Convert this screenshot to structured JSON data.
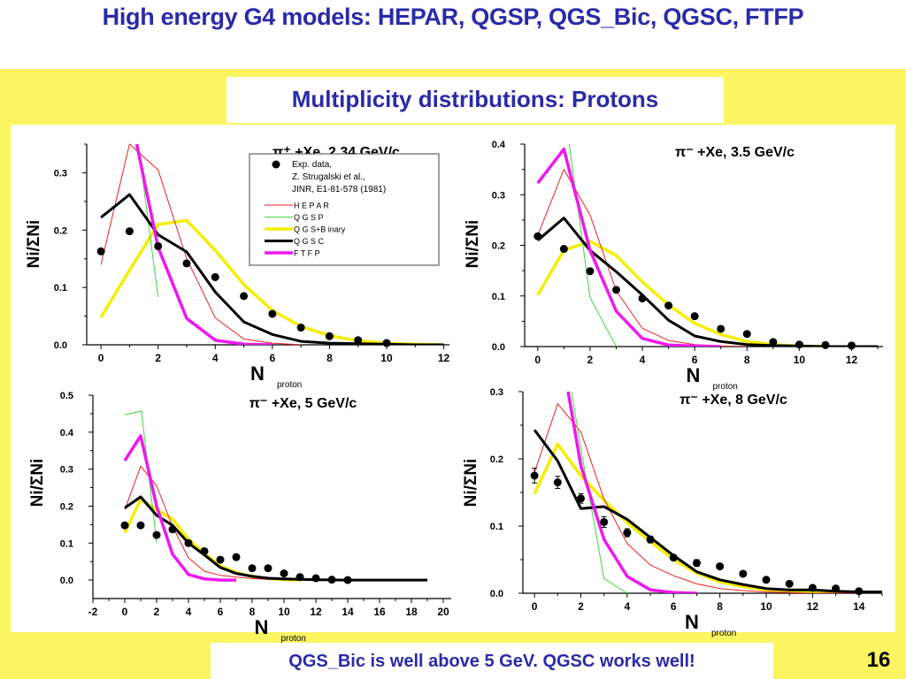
{
  "slide": {
    "title": "High energy G4 models: HEPAR, QGSP, QGS_Bic, QGSC, FTFP",
    "subtitle": "Multiplicity distributions: Protons",
    "footer": "QGS_Bic is well above 5 GeV. QGSC works well!",
    "page_number": "16"
  },
  "colors": {
    "title_text": "#2a2aa8",
    "background": "#fbf562",
    "HEPAR": "#e8231f",
    "QGSP": "#3ed83e",
    "QGS+Binary": "#f4ee00",
    "QGSC": "#000000",
    "FTFP": "#ee18ee",
    "data": "#000000"
  },
  "legend": {
    "data_label_lines": [
      "Exp. data,",
      "Z. Strugalski et al.,",
      "JINR, E1-81-578 (1981)"
    ],
    "entries": [
      "HEPAR",
      "QGSP",
      "QGS+Binary",
      "QGSC",
      "FTFP"
    ],
    "displayed_labels": [
      "H E P A R",
      "Q G S P",
      "Q G S+B inary",
      "Q G S C",
      "F T F P"
    ]
  },
  "chart_data": [
    {
      "type": "line",
      "title": "π⁺ +Xe, 2.34 GeV/c",
      "xlabel": "N",
      "xlabel_sub": "proton",
      "ylabel": "Ni/ΣNi",
      "xlim": [
        -0.5,
        12.2
      ],
      "ylim": [
        0,
        0.35
      ],
      "xticks": [
        0,
        2,
        4,
        6,
        8,
        10,
        12
      ],
      "yticks": [
        0.0,
        0.1,
        0.2,
        0.3
      ],
      "ytick_labels": [
        "0.0",
        "0.1",
        "0.2",
        "0.3"
      ],
      "legend_placement": "top-right",
      "has_legend": true,
      "data_points": {
        "x": [
          0,
          1,
          2,
          3,
          4,
          5,
          6,
          7,
          8,
          9,
          10
        ],
        "y": [
          0.163,
          0.198,
          0.172,
          0.142,
          0.118,
          0.085,
          0.054,
          0.03,
          0.015,
          0.008,
          0.003
        ],
        "errors": false
      },
      "series": [
        {
          "name": "HEPAR",
          "x": [
            0,
            1,
            2,
            3,
            4,
            5,
            6,
            7
          ],
          "y": [
            0.14,
            0.35,
            0.305,
            0.15,
            0.047,
            0.01,
            0.003,
            0.0
          ]
        },
        {
          "name": "QGSP",
          "x": [
            1.3,
            2
          ],
          "y": [
            0.35,
            0.083
          ]
        },
        {
          "name": "QGS+Binary",
          "x": [
            0,
            1,
            2,
            3,
            4,
            5,
            6,
            7,
            8,
            9,
            10,
            11,
            12
          ],
          "y": [
            0.048,
            0.13,
            0.21,
            0.217,
            0.165,
            0.105,
            0.06,
            0.032,
            0.016,
            0.007,
            0.003,
            0.001,
            0.0
          ]
        },
        {
          "name": "QGSC",
          "x": [
            0,
            1,
            2,
            3,
            4,
            5,
            6,
            7,
            8,
            9,
            10,
            11,
            12
          ],
          "y": [
            0.222,
            0.262,
            0.192,
            0.162,
            0.092,
            0.04,
            0.018,
            0.006,
            0.003,
            0.002,
            0.001,
            0.0,
            0.0
          ]
        },
        {
          "name": "FTFP",
          "x": [
            1.25,
            2,
            3,
            4,
            5,
            6
          ],
          "y": [
            0.35,
            0.17,
            0.046,
            0.008,
            0.001,
            0.0
          ]
        }
      ]
    },
    {
      "type": "line",
      "title": "π⁻ +Xe, 3.5 GeV/c",
      "xlabel": "N",
      "xlabel_sub": "proton",
      "ylabel": "Ni/ΣNi",
      "xlim": [
        -0.5,
        13.2
      ],
      "ylim": [
        0,
        0.4
      ],
      "xticks": [
        0,
        2,
        4,
        6,
        8,
        10,
        12
      ],
      "yticks": [
        0.0,
        0.1,
        0.2,
        0.3,
        0.4
      ],
      "ytick_labels": [
        "0.0",
        "0.1",
        "0.2",
        "0.3",
        "0.4"
      ],
      "has_legend": false,
      "data_points": {
        "x": [
          0,
          1,
          2,
          3,
          4,
          5,
          6,
          7,
          8,
          9,
          10,
          11,
          12
        ],
        "y": [
          0.218,
          0.193,
          0.149,
          0.112,
          0.095,
          0.081,
          0.06,
          0.035,
          0.025,
          0.009,
          0.004,
          0.003,
          0.002
        ],
        "errors": false
      },
      "series": [
        {
          "name": "HEPAR",
          "x": [
            0,
            1,
            2,
            3,
            4,
            5,
            6,
            7,
            8
          ],
          "y": [
            0.22,
            0.35,
            0.26,
            0.11,
            0.036,
            0.012,
            0.004,
            0.001,
            0.0
          ]
        },
        {
          "name": "QGSP",
          "x": [
            1.2,
            2,
            3
          ],
          "y": [
            0.4,
            0.097,
            0.0
          ]
        },
        {
          "name": "QGS+Binary",
          "x": [
            0,
            1,
            2,
            3,
            4,
            5,
            6,
            7,
            8,
            9,
            10,
            11
          ],
          "y": [
            0.102,
            0.19,
            0.208,
            0.18,
            0.128,
            0.082,
            0.046,
            0.024,
            0.01,
            0.004,
            0.001,
            0.0
          ]
        },
        {
          "name": "QGSC",
          "x": [
            0,
            1,
            2,
            3,
            4,
            5,
            6,
            7,
            8,
            9,
            10,
            11,
            12,
            13
          ],
          "y": [
            0.21,
            0.254,
            0.19,
            0.148,
            0.102,
            0.052,
            0.021,
            0.01,
            0.004,
            0.002,
            0.001,
            0.0,
            0.0,
            0.0
          ]
        },
        {
          "name": "FTFP",
          "x": [
            0,
            1,
            2,
            3,
            4,
            5,
            6,
            7
          ],
          "y": [
            0.323,
            0.39,
            0.19,
            0.07,
            0.016,
            0.003,
            0.001,
            0.0
          ]
        }
      ]
    },
    {
      "type": "line",
      "title": "π⁻ +Xe, 5 GeV/c",
      "xlabel": "N",
      "xlabel_sub": "proton",
      "ylabel": "Ni/ΣNi",
      "xlim": [
        -2,
        20.5
      ],
      "ylim": [
        -0.05,
        0.5
      ],
      "xticks": [
        -2,
        0,
        2,
        4,
        6,
        8,
        10,
        12,
        14,
        16,
        18,
        20
      ],
      "yticks": [
        0.0,
        0.1,
        0.2,
        0.3,
        0.4,
        0.5
      ],
      "ytick_labels": [
        "0.0",
        "0.1",
        "0.2",
        "0.3",
        "0.4",
        "0.5"
      ],
      "has_legend": false,
      "data_points": {
        "x": [
          0,
          1,
          2,
          3,
          4,
          5,
          6,
          7,
          8,
          9,
          10,
          11,
          12,
          13,
          14
        ],
        "y": [
          0.148,
          0.148,
          0.122,
          0.137,
          0.1,
          0.078,
          0.055,
          0.062,
          0.032,
          0.032,
          0.018,
          0.008,
          0.005,
          0.001,
          0.0
        ],
        "errors": false
      },
      "series": [
        {
          "name": "HEPAR",
          "x": [
            0,
            1,
            2,
            3,
            4,
            5,
            6,
            7,
            8,
            9,
            10,
            11,
            12
          ],
          "y": [
            0.19,
            0.308,
            0.255,
            0.145,
            0.06,
            0.024,
            0.013,
            0.008,
            0.004,
            0.002,
            0.001,
            0.0,
            0.0
          ]
        },
        {
          "name": "QGSP",
          "x": [
            0,
            1.05,
            2
          ],
          "y": [
            0.447,
            0.457,
            0.1
          ]
        },
        {
          "name": "QGS+Binary",
          "x": [
            0,
            1,
            2,
            3,
            4,
            5,
            6,
            7,
            8,
            9,
            10,
            11
          ],
          "y": [
            0.128,
            0.218,
            0.19,
            0.165,
            0.11,
            0.072,
            0.038,
            0.02,
            0.01,
            0.004,
            0.001,
            0.0
          ]
        },
        {
          "name": "QGSC",
          "x": [
            0,
            1,
            2,
            3,
            4,
            5,
            6,
            7,
            8,
            9,
            10,
            12,
            14,
            16,
            19
          ],
          "y": [
            0.195,
            0.225,
            0.175,
            0.148,
            0.1,
            0.068,
            0.034,
            0.018,
            0.01,
            0.005,
            0.003,
            0.001,
            0.0,
            0.0,
            0.0
          ]
        },
        {
          "name": "FTFP",
          "x": [
            0,
            1,
            2,
            3,
            4,
            5,
            6,
            7
          ],
          "y": [
            0.323,
            0.39,
            0.2,
            0.07,
            0.015,
            0.003,
            0.0,
            0.0
          ]
        }
      ]
    },
    {
      "type": "line",
      "title": "π⁻ +Xe, 8 GeV/c",
      "xlabel": "N",
      "xlabel_sub": "proton",
      "ylabel": "Ni/ΣNi",
      "xlim": [
        -0.5,
        15
      ],
      "ylim": [
        0,
        0.3
      ],
      "xticks": [
        0,
        2,
        4,
        6,
        8,
        10,
        12,
        14
      ],
      "yticks": [
        0.0,
        0.1,
        0.2,
        0.3
      ],
      "ytick_labels": [
        "0.0",
        "0.1",
        "0.2",
        "0.3"
      ],
      "has_legend": false,
      "data_points": {
        "x": [
          0,
          1,
          2,
          3,
          4,
          5,
          6,
          7,
          8,
          9,
          10,
          11,
          12,
          13,
          14
        ],
        "y": [
          0.175,
          0.165,
          0.141,
          0.106,
          0.09,
          0.08,
          0.053,
          0.045,
          0.04,
          0.029,
          0.02,
          0.014,
          0.008,
          0.007,
          0.003
        ],
        "err": [
          0.011,
          0.009,
          0.007,
          0.008,
          0.006,
          0.005,
          0.004,
          0.005,
          0.004,
          0.003,
          0.003,
          0.002,
          0.002,
          0.002,
          0.001
        ],
        "errors": true
      },
      "series": [
        {
          "name": "HEPAR",
          "x": [
            0,
            1,
            2,
            3,
            4,
            5,
            6,
            7,
            8,
            9,
            10,
            11,
            12,
            13,
            14
          ],
          "y": [
            0.18,
            0.282,
            0.24,
            0.14,
            0.074,
            0.042,
            0.026,
            0.014,
            0.007,
            0.004,
            0.002,
            0.001,
            0.0,
            0.0,
            0.0
          ]
        },
        {
          "name": "QGSP",
          "x": [
            1.6,
            2,
            3,
            4
          ],
          "y": [
            0.3,
            0.215,
            0.022,
            0.0
          ]
        },
        {
          "name": "QGS+Binary",
          "x": [
            0,
            1,
            2,
            3,
            4,
            5,
            6,
            7,
            8,
            9,
            10,
            11,
            12,
            13,
            14,
            15
          ],
          "y": [
            0.148,
            0.222,
            0.175,
            0.138,
            0.105,
            0.077,
            0.05,
            0.03,
            0.017,
            0.01,
            0.005,
            0.003,
            0.003,
            0.002,
            0.001,
            0.0
          ]
        },
        {
          "name": "QGSC",
          "x": [
            0,
            1,
            2,
            3,
            4,
            5,
            6,
            7,
            8,
            9,
            10,
            11,
            12,
            13,
            14,
            15
          ],
          "y": [
            0.243,
            0.197,
            0.126,
            0.129,
            0.11,
            0.083,
            0.056,
            0.032,
            0.02,
            0.013,
            0.007,
            0.005,
            0.005,
            0.003,
            0.002,
            0.002
          ]
        },
        {
          "name": "FTFP",
          "x": [
            1.45,
            2,
            3,
            4,
            5,
            6,
            7
          ],
          "y": [
            0.3,
            0.19,
            0.08,
            0.025,
            0.005,
            0.001,
            0.0
          ]
        }
      ]
    }
  ]
}
